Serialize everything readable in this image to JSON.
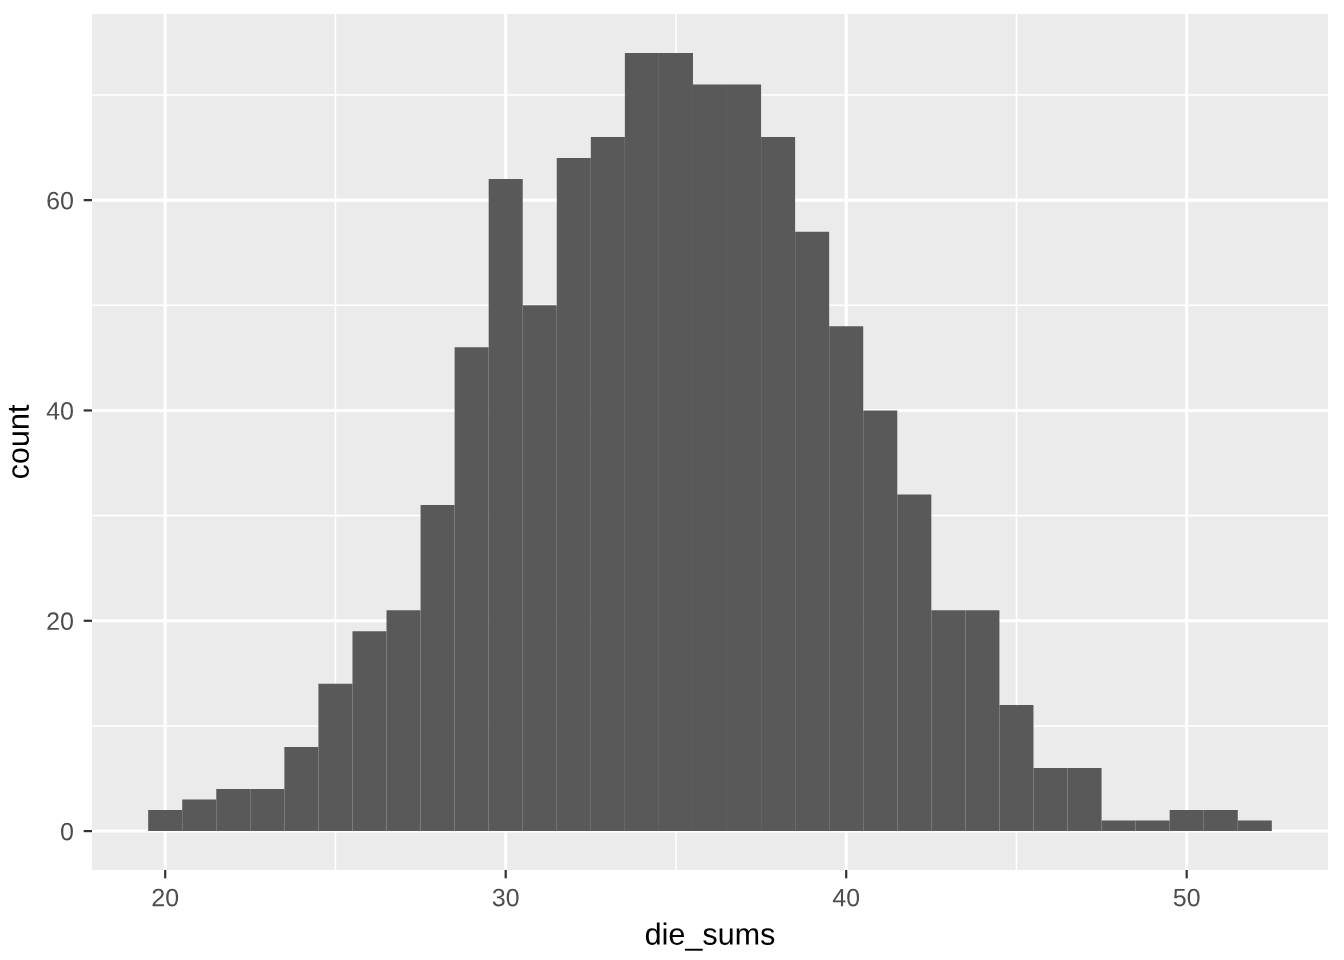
{
  "chart_data": {
    "type": "histogram",
    "xlabel": "die_sums",
    "ylabel": "count",
    "color": "#595959",
    "bins": [
      19.5,
      20.5,
      21.5,
      22.5,
      23.5,
      24.5,
      25.5,
      26.5,
      27.5,
      28.5,
      29.5,
      30.5,
      31.5,
      32.5,
      33.5,
      34.5,
      35.5,
      36.5,
      37.5,
      38.5,
      39.5,
      40.5,
      41.5,
      42.5,
      43.5,
      44.5,
      45.5,
      46.5,
      47.5,
      48.5,
      49.5,
      50.5,
      51.5,
      52.5
    ],
    "values": [
      2,
      3,
      4,
      4,
      8,
      14,
      19,
      21,
      31,
      46,
      62,
      50,
      64,
      66,
      74,
      74,
      71,
      71,
      66,
      57,
      48,
      40,
      32,
      21,
      21,
      12,
      6,
      6,
      1,
      1,
      2,
      2,
      1
    ],
    "xlim": [
      17.85,
      54.15
    ],
    "ylim": [
      -3.7,
      77.7
    ],
    "xticks": [
      20,
      {
        "value": 25,
        "label": null
      },
      30,
      {
        "value": 35,
        "label": null
      },
      40,
      {
        "value": 45,
        "label": null
      },
      50
    ],
    "yticks": [
      0,
      {
        "value": 10,
        "label": null
      },
      20,
      {
        "value": 30,
        "label": null
      },
      40,
      {
        "value": 50,
        "label": null
      },
      60,
      {
        "value": 70,
        "label": null
      }
    ],
    "grid": true
  }
}
